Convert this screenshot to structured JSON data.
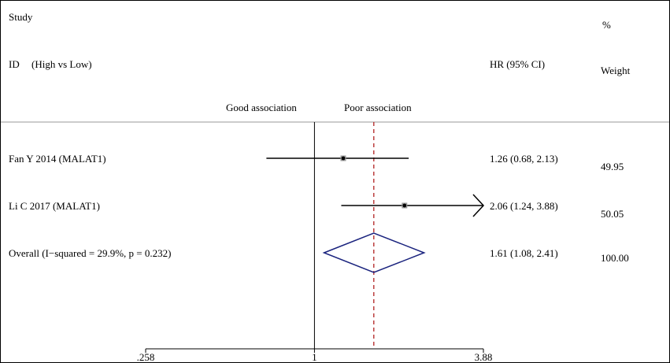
{
  "header": {
    "study": "Study",
    "id": "ID",
    "comparison": "(High vs Low)",
    "hr_col": "HR (95% CI)",
    "pct": "%",
    "weight": "Weight",
    "good": "Good association",
    "poor": "Poor association"
  },
  "chart_data": {
    "type": "forest",
    "x_scale": "log",
    "xlim": [
      0.258,
      3.88
    ],
    "x_ticks": [
      {
        "value": 0.258,
        "label": ".258"
      },
      {
        "value": 1,
        "label": "1"
      },
      {
        "value": 3.88,
        "label": "3.88"
      }
    ],
    "null_line": 1,
    "overall_line": 1.61,
    "studies": [
      {
        "name": "Fan Y 2014 (MALAT1)",
        "hr": 1.26,
        "lo": 0.68,
        "hi": 2.13,
        "hr_text": "1.26 (0.68, 2.13)",
        "weight": "49.95",
        "arrow_right": false
      },
      {
        "name": "Li C 2017 (MALAT1)",
        "hr": 2.06,
        "lo": 1.24,
        "hi": 3.88,
        "hr_text": "2.06 (1.24, 3.88)",
        "weight": "50.05",
        "arrow_right": true
      }
    ],
    "overall": {
      "name": "Overall  (I−squared = 29.9%, p = 0.232)",
      "hr": 1.61,
      "lo": 1.08,
      "hi": 2.41,
      "hr_text": "1.61 (1.08, 2.41)",
      "weight": "100.00"
    },
    "colors": {
      "diamond": "#1a237e",
      "overall_line": "#b22222",
      "lines": "#000000"
    }
  }
}
